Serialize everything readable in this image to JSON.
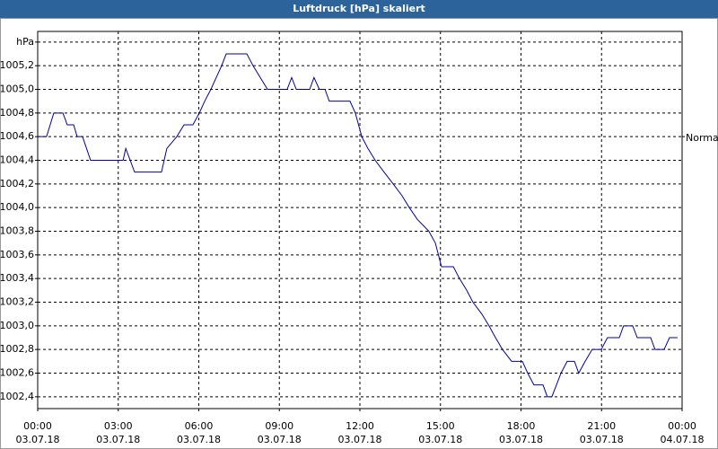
{
  "chart_data": {
    "type": "line",
    "title": "Luftdruck [hPa] skaliert",
    "xlim": [
      0,
      24
    ],
    "ylim": [
      1002.3,
      1005.49
    ],
    "grid": true,
    "xticks": [
      {
        "value": 0,
        "label": "00:00",
        "date": "03.07.18"
      },
      {
        "value": 3,
        "label": "03:00",
        "date": "03.07.18"
      },
      {
        "value": 6,
        "label": "06:00",
        "date": "03.07.18"
      },
      {
        "value": 9,
        "label": "09:00",
        "date": "03.07.18"
      },
      {
        "value": 12,
        "label": "12:00",
        "date": "03.07.18"
      },
      {
        "value": 15,
        "label": "15:00",
        "date": "03.07.18"
      },
      {
        "value": 18,
        "label": "18:00",
        "date": "03.07.18"
      },
      {
        "value": 21,
        "label": "21:00",
        "date": "03.07.18"
      },
      {
        "value": 24,
        "label": "00:00",
        "date": "04.07.18"
      }
    ],
    "yticks": [
      {
        "value": 1002.4,
        "label": "1002,4"
      },
      {
        "value": 1002.6,
        "label": "1002,6"
      },
      {
        "value": 1002.8,
        "label": "1002,8"
      },
      {
        "value": 1003.0,
        "label": "1003,0"
      },
      {
        "value": 1003.2,
        "label": "1003,2"
      },
      {
        "value": 1003.4,
        "label": "1003,4"
      },
      {
        "value": 1003.6,
        "label": "1003,6"
      },
      {
        "value": 1003.8,
        "label": "1003,8"
      },
      {
        "value": 1004.0,
        "label": "1004,0"
      },
      {
        "value": 1004.2,
        "label": "1004,2"
      },
      {
        "value": 1004.4,
        "label": "1004,4"
      },
      {
        "value": 1004.6,
        "label": "1004,6"
      },
      {
        "value": 1004.8,
        "label": "1004,8"
      },
      {
        "value": 1005.0,
        "label": "1005,0"
      },
      {
        "value": 1005.2,
        "label": "1005,2"
      },
      {
        "value": 1005.4,
        "label": "hPa"
      }
    ],
    "normal_marker": {
      "value": 1004.6,
      "label": "Normal"
    },
    "series": [
      {
        "color": "#0000a0",
        "x": [
          0,
          0.33,
          0.6,
          0.94,
          1.1,
          1.34,
          1.47,
          1.67,
          1.97,
          3.18,
          3.28,
          3.61,
          4.61,
          4.71,
          4.81,
          5.18,
          5.45,
          5.78,
          6.02,
          6.22,
          6.45,
          6.65,
          6.85,
          7.02,
          7.79,
          8.02,
          8.29,
          8.56,
          9.29,
          9.46,
          9.63,
          10.13,
          10.29,
          10.49,
          10.7,
          10.86,
          11.63,
          11.83,
          12.07,
          12.3,
          12.57,
          12.9,
          13.24,
          13.57,
          13.84,
          14.14,
          14.57,
          14.81,
          15.04,
          15.48,
          15.71,
          15.98,
          16.21,
          16.54,
          16.81,
          17.05,
          17.31,
          17.65,
          18.05,
          18.25,
          18.48,
          18.82,
          18.98,
          19.15,
          19.32,
          19.49,
          19.72,
          19.99,
          20.15,
          20.39,
          20.65,
          20.99,
          21.22,
          21.66,
          21.82,
          22.16,
          22.33,
          22.83,
          22.99,
          23.33,
          23.53,
          23.83
        ],
        "values": [
          1004.6,
          1004.6,
          1004.8,
          1004.8,
          1004.7,
          1004.7,
          1004.6,
          1004.6,
          1004.4,
          1004.4,
          1004.5,
          1004.3,
          1004.3,
          1004.4,
          1004.5,
          1004.6,
          1004.7,
          1004.7,
          1004.8,
          1004.9,
          1005.0,
          1005.1,
          1005.2,
          1005.3,
          1005.3,
          1005.2,
          1005.1,
          1005.0,
          1005.0,
          1005.1,
          1005.0,
          1005.0,
          1005.1,
          1005.0,
          1005.0,
          1004.9,
          1004.9,
          1004.8,
          1004.6,
          1004.5,
          1004.4,
          1004.3,
          1004.2,
          1004.1,
          1004.0,
          1003.9,
          1003.8,
          1003.7,
          1003.5,
          1003.5,
          1003.4,
          1003.3,
          1003.2,
          1003.1,
          1003.0,
          1002.9,
          1002.8,
          1002.7,
          1002.7,
          1002.6,
          1002.5,
          1002.5,
          1002.4,
          1002.4,
          1002.5,
          1002.6,
          1002.7,
          1002.7,
          1002.6,
          1002.7,
          1002.8,
          1002.8,
          1002.9,
          1002.9,
          1003.0,
          1003.0,
          1002.9,
          1002.9,
          1002.8,
          1002.8,
          1002.9,
          1002.9
        ]
      }
    ]
  }
}
